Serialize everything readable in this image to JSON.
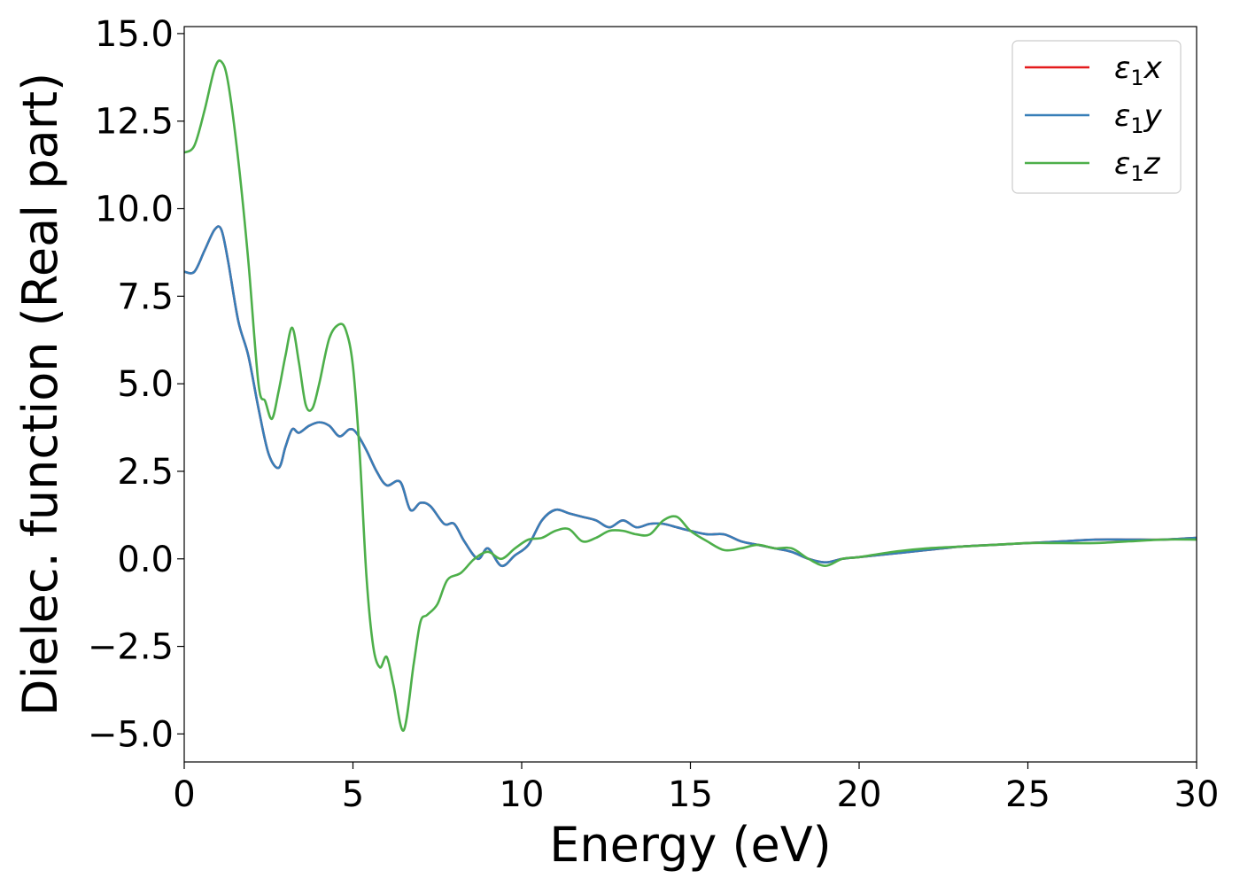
{
  "chart_data": {
    "type": "line",
    "xlabel": "Energy (eV)",
    "ylabel": "Dielec. function (Real part)",
    "xlim": [
      0,
      30
    ],
    "ylim": [
      -5.8,
      15.2
    ],
    "xticks": [
      0,
      5,
      10,
      15,
      20,
      25,
      30
    ],
    "xtick_labels": [
      "0",
      "5",
      "10",
      "15",
      "20",
      "25",
      "30"
    ],
    "yticks": [
      -5,
      -2.5,
      0,
      2.5,
      5,
      7.5,
      10,
      12.5,
      15
    ],
    "ytick_labels": [
      "−5.0",
      "−2.5",
      "0.0",
      "2.5",
      "5.0",
      "7.5",
      "10.0",
      "12.5",
      "15.0"
    ],
    "grid": false,
    "legend_position": "top-right",
    "series": [
      {
        "name": "ε₁x",
        "legend_base": "ε",
        "legend_sub": "1",
        "legend_tail": "x",
        "color": "#e41a1c",
        "x": [
          0,
          0.3,
          0.6,
          0.9,
          1.1,
          1.3,
          1.6,
          1.9,
          2.2,
          2.5,
          2.8,
          3.0,
          3.2,
          3.4,
          3.7,
          4.0,
          4.3,
          4.6,
          4.9,
          5.1,
          5.4,
          5.7,
          6.0,
          6.4,
          6.7,
          7.0,
          7.3,
          7.7,
          8.0,
          8.3,
          8.7,
          9.0,
          9.4,
          9.8,
          10.2,
          10.6,
          11.0,
          11.4,
          11.8,
          12.2,
          12.6,
          13.0,
          13.4,
          13.8,
          14.2,
          14.6,
          15.0,
          15.5,
          16.0,
          16.5,
          17.0,
          17.5,
          18.0,
          18.5,
          19.0,
          19.5,
          20.0,
          21.0,
          22.0,
          23.0,
          24.0,
          25.0,
          26.0,
          27.0,
          28.0,
          29.0,
          30.0
        ],
        "y": [
          8.2,
          8.2,
          8.8,
          9.4,
          9.4,
          8.5,
          6.8,
          5.8,
          4.3,
          3.0,
          2.6,
          3.2,
          3.7,
          3.6,
          3.8,
          3.9,
          3.8,
          3.5,
          3.7,
          3.6,
          3.1,
          2.5,
          2.1,
          2.2,
          1.4,
          1.6,
          1.5,
          1.0,
          1.0,
          0.5,
          0.0,
          0.3,
          -0.2,
          0.1,
          0.4,
          1.1,
          1.4,
          1.3,
          1.2,
          1.1,
          0.9,
          1.1,
          0.9,
          1.0,
          1.0,
          0.9,
          0.8,
          0.7,
          0.7,
          0.5,
          0.4,
          0.3,
          0.2,
          0.0,
          -0.1,
          0.0,
          0.05,
          0.15,
          0.25,
          0.35,
          0.4,
          0.45,
          0.5,
          0.55,
          0.55,
          0.55,
          0.6
        ]
      },
      {
        "name": "ε₁y",
        "legend_base": "ε",
        "legend_sub": "1",
        "legend_tail": "y",
        "color": "#377eb8",
        "x": [
          0,
          0.3,
          0.6,
          0.9,
          1.1,
          1.3,
          1.6,
          1.9,
          2.2,
          2.5,
          2.8,
          3.0,
          3.2,
          3.4,
          3.7,
          4.0,
          4.3,
          4.6,
          4.9,
          5.1,
          5.4,
          5.7,
          6.0,
          6.4,
          6.7,
          7.0,
          7.3,
          7.7,
          8.0,
          8.3,
          8.7,
          9.0,
          9.4,
          9.8,
          10.2,
          10.6,
          11.0,
          11.4,
          11.8,
          12.2,
          12.6,
          13.0,
          13.4,
          13.8,
          14.2,
          14.6,
          15.0,
          15.5,
          16.0,
          16.5,
          17.0,
          17.5,
          18.0,
          18.5,
          19.0,
          19.5,
          20.0,
          21.0,
          22.0,
          23.0,
          24.0,
          25.0,
          26.0,
          27.0,
          28.0,
          29.0,
          30.0
        ],
        "y": [
          8.2,
          8.2,
          8.8,
          9.4,
          9.4,
          8.5,
          6.8,
          5.8,
          4.3,
          3.0,
          2.6,
          3.2,
          3.7,
          3.6,
          3.8,
          3.9,
          3.8,
          3.5,
          3.7,
          3.6,
          3.1,
          2.5,
          2.1,
          2.2,
          1.4,
          1.6,
          1.5,
          1.0,
          1.0,
          0.5,
          0.0,
          0.3,
          -0.2,
          0.1,
          0.4,
          1.1,
          1.4,
          1.3,
          1.2,
          1.1,
          0.9,
          1.1,
          0.9,
          1.0,
          1.0,
          0.9,
          0.8,
          0.7,
          0.7,
          0.5,
          0.4,
          0.3,
          0.2,
          0.0,
          -0.1,
          0.0,
          0.05,
          0.15,
          0.25,
          0.35,
          0.4,
          0.45,
          0.5,
          0.55,
          0.55,
          0.55,
          0.6
        ]
      },
      {
        "name": "ε₁z",
        "legend_base": "ε",
        "legend_sub": "1",
        "legend_tail": "z",
        "color": "#4daf4a",
        "x": [
          0,
          0.3,
          0.6,
          0.9,
          1.1,
          1.3,
          1.6,
          1.9,
          2.2,
          2.4,
          2.6,
          2.8,
          3.0,
          3.2,
          3.4,
          3.6,
          3.8,
          4.0,
          4.3,
          4.6,
          4.8,
          5.0,
          5.2,
          5.4,
          5.6,
          5.8,
          6.0,
          6.2,
          6.5,
          6.8,
          7.0,
          7.2,
          7.5,
          7.8,
          8.2,
          8.6,
          9.0,
          9.4,
          9.8,
          10.2,
          10.6,
          11.0,
          11.4,
          11.8,
          12.2,
          12.6,
          13.0,
          13.4,
          13.8,
          14.2,
          14.6,
          15.0,
          15.5,
          16.0,
          16.5,
          17.0,
          17.5,
          18.0,
          18.5,
          19.0,
          19.5,
          20.0,
          21.0,
          22.0,
          23.0,
          24.0,
          25.0,
          26.0,
          27.0,
          28.0,
          29.0,
          30.0
        ],
        "y": [
          11.6,
          11.8,
          12.8,
          14.0,
          14.2,
          13.6,
          11.4,
          8.5,
          5.0,
          4.5,
          4.0,
          4.8,
          5.8,
          6.6,
          5.6,
          4.4,
          4.3,
          5.0,
          6.3,
          6.7,
          6.5,
          5.5,
          3.0,
          -0.5,
          -2.5,
          -3.1,
          -2.8,
          -3.6,
          -4.9,
          -3.0,
          -1.8,
          -1.6,
          -1.3,
          -0.6,
          -0.4,
          0.0,
          0.2,
          0.0,
          0.3,
          0.55,
          0.6,
          0.8,
          0.85,
          0.5,
          0.6,
          0.8,
          0.8,
          0.7,
          0.7,
          1.1,
          1.2,
          0.8,
          0.5,
          0.25,
          0.3,
          0.4,
          0.3,
          0.3,
          0.0,
          -0.2,
          0.0,
          0.05,
          0.2,
          0.3,
          0.35,
          0.4,
          0.45,
          0.45,
          0.45,
          0.5,
          0.55,
          0.55
        ]
      }
    ]
  }
}
